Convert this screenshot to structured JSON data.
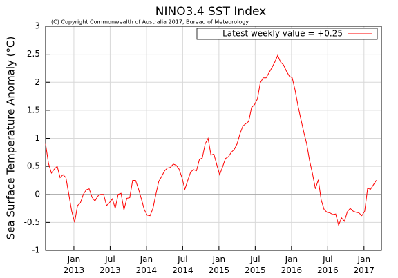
{
  "chart_data": {
    "type": "line",
    "title": "NINO3.4 SST Index",
    "annotation": "(C) Copyright Commonwealth of Australia 2017, Bureau of Meteorology",
    "y_label": "Sea Surface Temperature Anomaly (°C)",
    "x": [
      2012.61,
      2012.65,
      2012.69,
      2012.73,
      2012.77,
      2012.81,
      2012.85,
      2012.89,
      2012.93,
      2012.97,
      2013.01,
      2013.05,
      2013.09,
      2013.13,
      2013.17,
      2013.21,
      2013.25,
      2013.29,
      2013.33,
      2013.37,
      2013.41,
      2013.45,
      2013.49,
      2013.53,
      2013.57,
      2013.61,
      2013.65,
      2013.69,
      2013.73,
      2013.77,
      2013.81,
      2013.85,
      2013.89,
      2013.93,
      2013.97,
      2014.01,
      2014.05,
      2014.09,
      2014.13,
      2014.17,
      2014.21,
      2014.25,
      2014.29,
      2014.33,
      2014.37,
      2014.41,
      2014.45,
      2014.49,
      2014.53,
      2014.57,
      2014.61,
      2014.65,
      2014.69,
      2014.73,
      2014.77,
      2014.81,
      2014.85,
      2014.89,
      2014.93,
      2014.97,
      2015.01,
      2015.05,
      2015.09,
      2015.13,
      2015.17,
      2015.21,
      2015.25,
      2015.29,
      2015.33,
      2015.37,
      2015.41,
      2015.45,
      2015.49,
      2015.53,
      2015.57,
      2015.61,
      2015.65,
      2015.69,
      2015.73,
      2015.77,
      2015.81,
      2015.85,
      2015.89,
      2015.93,
      2015.97,
      2016.01,
      2016.05,
      2016.09,
      2016.13,
      2016.17,
      2016.21,
      2016.25,
      2016.29,
      2016.33,
      2016.37,
      2016.41,
      2016.45,
      2016.49,
      2016.53,
      2016.57,
      2016.61,
      2016.65,
      2016.69,
      2016.73,
      2016.77,
      2016.81,
      2016.85,
      2016.89,
      2016.93,
      2016.97,
      2017.01,
      2017.05,
      2017.09,
      2017.13,
      2017.17
    ],
    "series": [
      {
        "name": "Latest weekly value = +0.25",
        "color": "#ff0000",
        "values": [
          0.9,
          0.55,
          0.38,
          0.45,
          0.5,
          0.3,
          0.35,
          0.3,
          0.0,
          -0.3,
          -0.5,
          -0.2,
          -0.15,
          0.0,
          0.08,
          0.1,
          -0.05,
          -0.12,
          -0.03,
          0.0,
          0.0,
          -0.2,
          -0.15,
          -0.08,
          -0.25,
          0.0,
          0.02,
          -0.28,
          -0.07,
          -0.06,
          0.25,
          0.25,
          0.1,
          -0.08,
          -0.27,
          -0.37,
          -0.38,
          -0.25,
          0.0,
          0.23,
          0.32,
          0.42,
          0.47,
          0.48,
          0.54,
          0.52,
          0.45,
          0.3,
          0.09,
          0.25,
          0.4,
          0.44,
          0.42,
          0.62,
          0.65,
          0.9,
          1.0,
          0.7,
          0.72,
          0.53,
          0.35,
          0.49,
          0.64,
          0.67,
          0.75,
          0.8,
          0.9,
          1.08,
          1.22,
          1.26,
          1.3,
          1.55,
          1.6,
          1.7,
          1.99,
          2.08,
          2.08,
          2.17,
          2.26,
          2.36,
          2.48,
          2.36,
          2.31,
          2.2,
          2.11,
          2.08,
          1.86,
          1.58,
          1.34,
          1.11,
          0.9,
          0.6,
          0.37,
          0.1,
          0.26,
          -0.1,
          -0.27,
          -0.32,
          -0.33,
          -0.36,
          -0.35,
          -0.55,
          -0.42,
          -0.48,
          -0.31,
          -0.25,
          -0.3,
          -0.32,
          -0.33,
          -0.38,
          -0.3,
          0.11,
          0.09,
          0.17,
          0.25
        ]
      }
    ],
    "xlim": [
      2012.61,
      2017.24
    ],
    "xticks": [
      {
        "value": 2013.0,
        "label": "Jan 2013"
      },
      {
        "value": 2013.5,
        "label": "Jul 2013"
      },
      {
        "value": 2014.0,
        "label": "Jan 2014"
      },
      {
        "value": 2014.5,
        "label": "Jul 2014"
      },
      {
        "value": 2015.0,
        "label": "Jan 2015"
      },
      {
        "value": 2015.5,
        "label": "Jul 2015"
      },
      {
        "value": 2016.0,
        "label": "Jan 2016"
      },
      {
        "value": 2016.5,
        "label": "Jul 2016"
      },
      {
        "value": 2017.0,
        "label": "Jan 2017"
      }
    ],
    "ylim": [
      -1,
      3
    ],
    "yticks": [
      -1,
      -0.5,
      0,
      0.5,
      1,
      1.5,
      2,
      2.5,
      3
    ],
    "grid": true,
    "zero_line": true,
    "legend": "top-right"
  }
}
